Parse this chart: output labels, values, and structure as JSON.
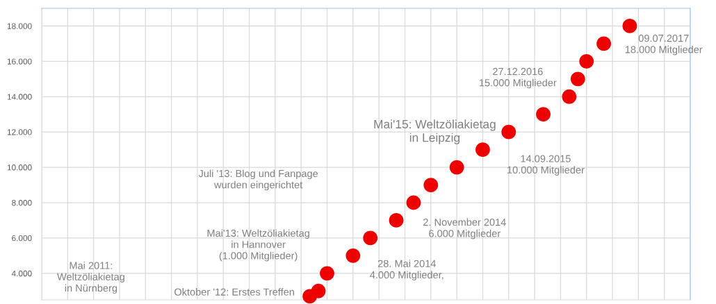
{
  "chart_data": {
    "type": "scatter",
    "categories": [
      null,
      null,
      null,
      null,
      null,
      null,
      null,
      null,
      null,
      null,
      null,
      null,
      null,
      null,
      null,
      null,
      null,
      null,
      null,
      null,
      null,
      null,
      null,
      null,
      null,
      null,
      null,
      null,
      null,
      null,
      null,
      null,
      null,
      null,
      null,
      null,
      null,
      null,
      null,
      null,
      null,
      null,
      null,
      null,
      null,
      null,
      null,
      null,
      null,
      null,
      null,
      null,
      null,
      null,
      null,
      null,
      null,
      null,
      null,
      null,
      null,
      null,
      null,
      null,
      null,
      null,
      null,
      null,
      null,
      null,
      null,
      null,
      null,
      null,
      null,
      null
    ],
    "values": [
      null,
      null,
      null,
      null,
      null,
      null,
      null,
      null,
      null,
      null,
      null,
      null,
      null,
      null,
      null,
      null,
      null,
      null,
      null,
      null,
      null,
      null,
      null,
      null,
      null,
      null,
      null,
      null,
      null,
      null,
      null,
      2700,
      3000,
      4000,
      null,
      null,
      5000,
      null,
      6000,
      null,
      null,
      7000,
      null,
      8000,
      null,
      9000,
      null,
      null,
      10000,
      null,
      null,
      11000,
      null,
      null,
      12000,
      null,
      null,
      null,
      13000,
      null,
      null,
      14000,
      15000,
      16000,
      null,
      17000,
      null,
      null,
      18000,
      null,
      null,
      null,
      null,
      null,
      null,
      null
    ],
    "color": "#ee0000",
    "marker": "circle",
    "ylim": [
      2500,
      19000
    ],
    "yticks": [
      {
        "value": 4000,
        "label": "4.000"
      },
      {
        "value": 6000,
        "label": "6.000"
      },
      {
        "value": 8000,
        "label": "8.000"
      },
      {
        "value": 10000,
        "label": "10.000"
      },
      {
        "value": 12000,
        "label": "12.000"
      },
      {
        "value": 14000,
        "label": "14.000"
      },
      {
        "value": 16000,
        "label": "16.000"
      },
      {
        "value": 18000,
        "label": "18.000"
      }
    ],
    "grid": true,
    "tick_labels": "y",
    "annotations": [
      "Mai 2011:\nWeltzöliakietag\nin Nürnberg",
      "Oktober '12: Erstes Treffen",
      "Mai'13: Weltzöliakietag\nin Hannover\n(1.000 Mitglieder)",
      "Juli '13: Blog und Fanpage\nwurden eingerichtet",
      "28. Mai 2014\n4.000 Mitglieder,",
      "2. November 2014\n6.000 Mitglieder",
      "Mai'15: Weltzöliakietag\nin Leipzig",
      "14.09.2015\n10.000 Mitglieder",
      "27.12.2016\n15.000 Mitglieder",
      "09.07.2017\n18.000 Mitglieder"
    ]
  }
}
